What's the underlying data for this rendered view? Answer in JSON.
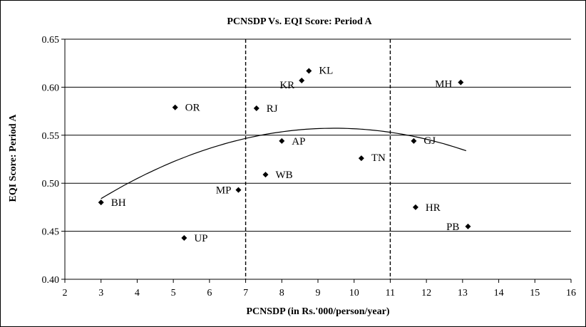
{
  "chart_data": {
    "type": "scatter",
    "title": "PCNSDP Vs. EQI Score: Period A",
    "xlabel": "PCNSDP (in Rs.'000/person/year)",
    "ylabel": "EQI Score: Period A",
    "xlim": [
      2,
      16
    ],
    "ylim": [
      0.4,
      0.65
    ],
    "x_ticks": [
      "2",
      "3",
      "4",
      "5",
      "6",
      "7",
      "8",
      "9",
      "10",
      "11",
      "12",
      "13",
      "14",
      "15",
      "16"
    ],
    "y_ticks": [
      "0.40",
      "0.45",
      "0.50",
      "0.55",
      "0.60",
      "0.65"
    ],
    "grid": "horizontal",
    "vertical_reference_lines": [
      7,
      11
    ],
    "points": [
      {
        "label": "BH",
        "x": 3.0,
        "y": 0.48
      },
      {
        "label": "UP",
        "x": 5.3,
        "y": 0.443
      },
      {
        "label": "OR",
        "x": 5.05,
        "y": 0.579
      },
      {
        "label": "MP",
        "x": 6.8,
        "y": 0.493
      },
      {
        "label": "RJ",
        "x": 7.3,
        "y": 0.578
      },
      {
        "label": "WB",
        "x": 7.55,
        "y": 0.509
      },
      {
        "label": "AP",
        "x": 8.0,
        "y": 0.544
      },
      {
        "label": "KR",
        "x": 8.55,
        "y": 0.607
      },
      {
        "label": "KL",
        "x": 8.75,
        "y": 0.617
      },
      {
        "label": "TN",
        "x": 10.2,
        "y": 0.526
      },
      {
        "label": "HR",
        "x": 11.7,
        "y": 0.475
      },
      {
        "label": "GJ",
        "x": 11.65,
        "y": 0.544
      },
      {
        "label": "MH",
        "x": 12.95,
        "y": 0.605
      },
      {
        "label": "PB",
        "x": 13.15,
        "y": 0.455
      }
    ],
    "trendline": {
      "type": "quadratic",
      "x_start": 3.0,
      "x_end": 13.1,
      "a": -0.0017617,
      "b": 0.0333,
      "c": 0.3999
    }
  }
}
